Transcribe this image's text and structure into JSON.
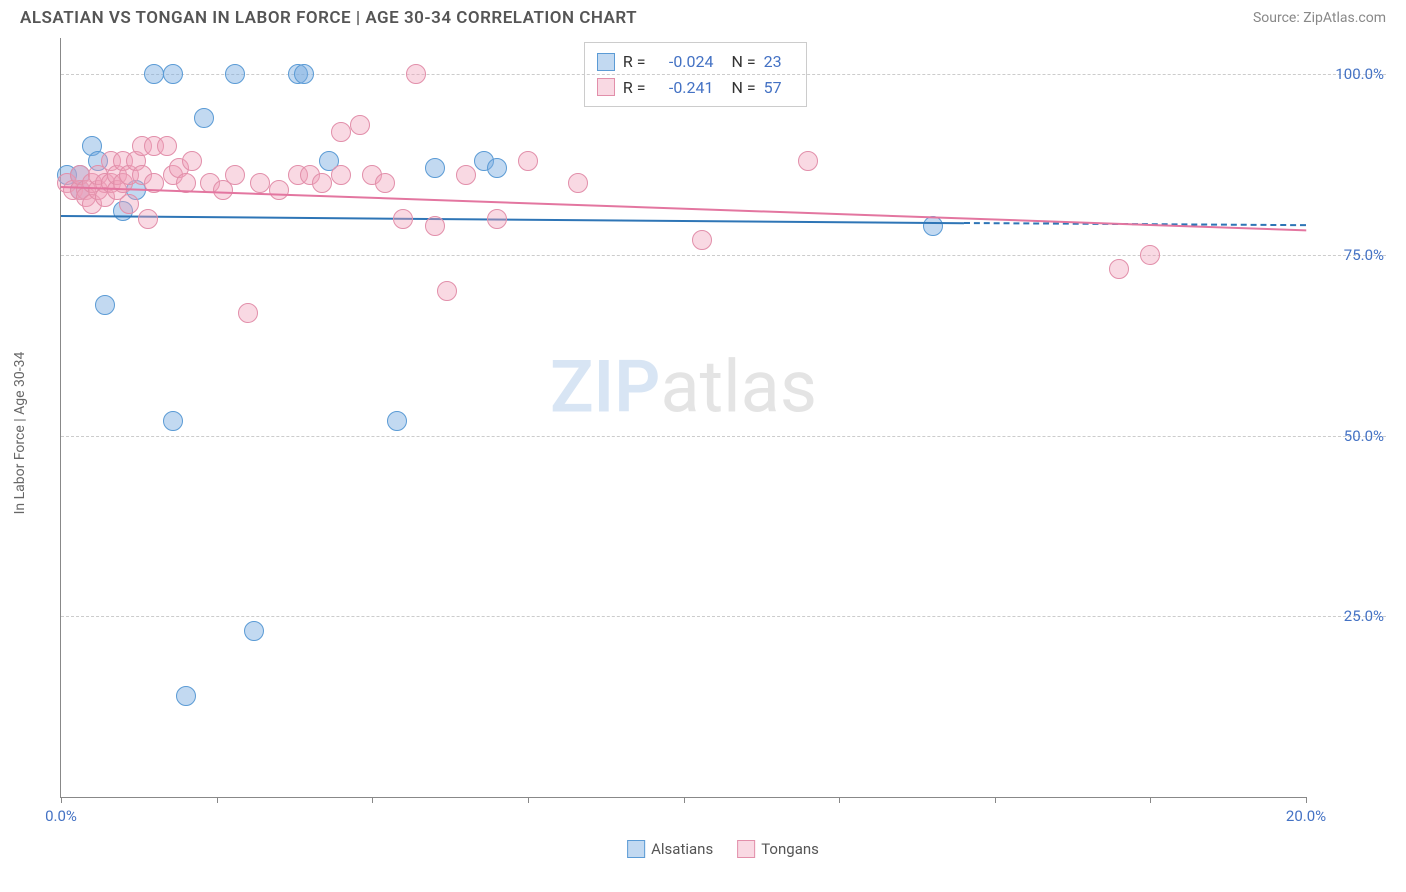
{
  "header": {
    "title": "ALSATIAN VS TONGAN IN LABOR FORCE | AGE 30-34 CORRELATION CHART",
    "source": "Source: ZipAtlas.com"
  },
  "chart": {
    "type": "scatter",
    "y_label": "In Labor Force | Age 30-34",
    "background_color": "#ffffff",
    "grid_color": "#cccccc",
    "axis_color": "#888888",
    "watermark": {
      "zip": "ZIP",
      "atlas": "atlas"
    },
    "xlim": [
      0,
      20
    ],
    "ylim": [
      0,
      105
    ],
    "x_ticks": [
      0,
      2.5,
      5,
      7.5,
      10,
      12.5,
      15,
      17.5,
      20
    ],
    "x_tick_labels": {
      "0": "0.0%",
      "20": "20.0%"
    },
    "y_ticks": [
      25,
      50,
      75,
      100
    ],
    "y_tick_labels": {
      "25": "25.0%",
      "50": "50.0%",
      "75": "75.0%",
      "100": "100.0%"
    },
    "marker_radius": 10,
    "series": {
      "alsatians": {
        "label": "Alsatians",
        "fill": "rgba(120,170,225,0.45)",
        "stroke": "#5b9bd5",
        "line_color": "#2e75b6",
        "r_value": "-0.024",
        "n_value": "23",
        "trend": {
          "x1": 0,
          "y1": 80.5,
          "x2": 14.5,
          "y2": 79.5,
          "dash_x2": 20,
          "dash_y2": 79.2
        },
        "points": [
          [
            0.1,
            86
          ],
          [
            0.3,
            86
          ],
          [
            0.3,
            84
          ],
          [
            0.5,
            90
          ],
          [
            0.6,
            88
          ],
          [
            0.7,
            68
          ],
          [
            1.0,
            81
          ],
          [
            1.2,
            84
          ],
          [
            1.5,
            100
          ],
          [
            1.8,
            100
          ],
          [
            1.8,
            52
          ],
          [
            2.0,
            14
          ],
          [
            2.3,
            94
          ],
          [
            2.8,
            100
          ],
          [
            3.1,
            23
          ],
          [
            3.8,
            100
          ],
          [
            3.9,
            100
          ],
          [
            4.3,
            88
          ],
          [
            5.4,
            52
          ],
          [
            6.0,
            87
          ],
          [
            6.8,
            88
          ],
          [
            7.0,
            87
          ],
          [
            14.0,
            79
          ]
        ]
      },
      "tongans": {
        "label": "Tongans",
        "fill": "rgba(240,160,185,0.40)",
        "stroke": "#e28faa",
        "line_color": "#e376a0",
        "r_value": "-0.241",
        "n_value": "57",
        "trend": {
          "x1": 0,
          "y1": 84.5,
          "x2": 20,
          "y2": 78.5
        },
        "points": [
          [
            0.1,
            85
          ],
          [
            0.2,
            84
          ],
          [
            0.3,
            84
          ],
          [
            0.3,
            86
          ],
          [
            0.4,
            84
          ],
          [
            0.4,
            83
          ],
          [
            0.5,
            85
          ],
          [
            0.5,
            82
          ],
          [
            0.6,
            84
          ],
          [
            0.6,
            86
          ],
          [
            0.7,
            85
          ],
          [
            0.7,
            83
          ],
          [
            0.8,
            88
          ],
          [
            0.8,
            85
          ],
          [
            0.9,
            84
          ],
          [
            0.9,
            86
          ],
          [
            1.0,
            85
          ],
          [
            1.0,
            88
          ],
          [
            1.1,
            86
          ],
          [
            1.1,
            82
          ],
          [
            1.2,
            88
          ],
          [
            1.3,
            90
          ],
          [
            1.3,
            86
          ],
          [
            1.4,
            80
          ],
          [
            1.5,
            85
          ],
          [
            1.5,
            90
          ],
          [
            1.7,
            90
          ],
          [
            1.8,
            86
          ],
          [
            1.9,
            87
          ],
          [
            2.0,
            85
          ],
          [
            2.1,
            88
          ],
          [
            2.4,
            85
          ],
          [
            2.6,
            84
          ],
          [
            2.8,
            86
          ],
          [
            3.0,
            67
          ],
          [
            3.2,
            85
          ],
          [
            3.5,
            84
          ],
          [
            3.8,
            86
          ],
          [
            4.0,
            86
          ],
          [
            4.2,
            85
          ],
          [
            4.5,
            92
          ],
          [
            4.5,
            86
          ],
          [
            4.8,
            93
          ],
          [
            5.0,
            86
          ],
          [
            5.2,
            85
          ],
          [
            5.5,
            80
          ],
          [
            5.7,
            100
          ],
          [
            6.0,
            79
          ],
          [
            6.2,
            70
          ],
          [
            6.5,
            86
          ],
          [
            7.0,
            80
          ],
          [
            7.5,
            88
          ],
          [
            8.3,
            85
          ],
          [
            10.3,
            77
          ],
          [
            12.0,
            88
          ],
          [
            17.0,
            73
          ],
          [
            17.5,
            75
          ]
        ]
      }
    },
    "bottom_legend": [
      "alsatians",
      "tongans"
    ]
  }
}
